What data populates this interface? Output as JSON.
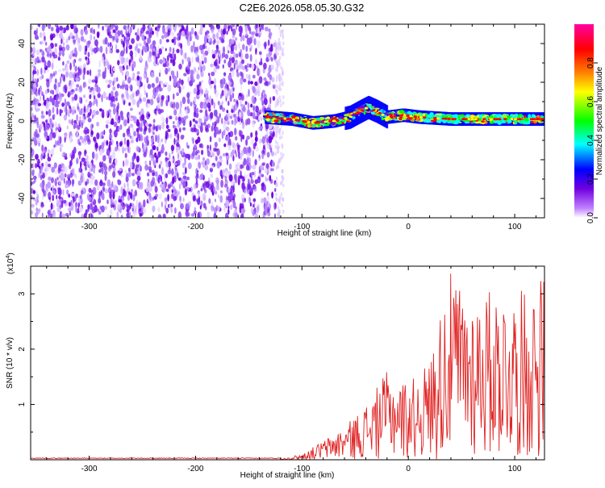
{
  "title": "C2E6.2026.058.05.30.G32",
  "chart_data": [
    {
      "type": "heatmap",
      "xlabel": "Height of straight line (km)",
      "ylabel": "Frequency (Hz)",
      "xlim": [
        -355,
        128
      ],
      "ylim": [
        -50,
        50
      ],
      "xticks": [
        -300,
        -200,
        -100,
        0,
        100
      ],
      "yticks": [
        -40,
        -20,
        0,
        20,
        40
      ],
      "noise_region_x": [
        -355,
        -125
      ],
      "signal_band_x": [
        -135,
        128
      ],
      "signal_center_hz": [
        {
          "x": -135,
          "y": 2
        },
        {
          "x": -110,
          "y": 1
        },
        {
          "x": -90,
          "y": -1
        },
        {
          "x": -70,
          "y": 0
        },
        {
          "x": -55,
          "y": 2
        },
        {
          "x": -45,
          "y": 5
        },
        {
          "x": -38,
          "y": 7
        },
        {
          "x": -30,
          "y": 5
        },
        {
          "x": -20,
          "y": 2
        },
        {
          "x": -5,
          "y": 3
        },
        {
          "x": 10,
          "y": 2
        },
        {
          "x": 40,
          "y": 1
        },
        {
          "x": 80,
          "y": 1
        },
        {
          "x": 128,
          "y": 1
        }
      ],
      "colorbar": {
        "label": "Normalized spectral amplitude",
        "range": [
          0,
          1
        ],
        "ticks": [
          0.0,
          0.2,
          0.4,
          0.6,
          0.8
        ],
        "colors": [
          "#ffffff",
          "#c080ff",
          "#7000e0",
          "#0000ff",
          "#00ffff",
          "#00ff00",
          "#ffff00",
          "#ff8000",
          "#ff0000",
          "#ff00a0"
        ]
      },
      "grid": false
    },
    {
      "type": "line",
      "xlabel": "Height of straight line (km)",
      "ylabel": "SNR (10 * v/v)",
      "yscale_label": "(x10",
      "yscale_exp": "4",
      "xlim": [
        -355,
        128
      ],
      "ylim": [
        0,
        3.5
      ],
      "xticks": [
        -300,
        -200,
        -100,
        0,
        100
      ],
      "yticks": [
        1,
        2,
        3
      ],
      "color": "#e02020",
      "envelope": [
        {
          "x": -355,
          "y": 0.02
        },
        {
          "x": -120,
          "y": 0.02
        },
        {
          "x": -100,
          "y": 0.1
        },
        {
          "x": -80,
          "y": 0.35
        },
        {
          "x": -60,
          "y": 0.6
        },
        {
          "x": -40,
          "y": 1.0
        },
        {
          "x": -20,
          "y": 1.6
        },
        {
          "x": 0,
          "y": 1.4
        },
        {
          "x": 20,
          "y": 1.8
        },
        {
          "x": 38,
          "y": 3.4
        },
        {
          "x": 60,
          "y": 3.0
        },
        {
          "x": 80,
          "y": 3.1
        },
        {
          "x": 100,
          "y": 3.0
        },
        {
          "x": 120,
          "y": 3.2
        },
        {
          "x": 128,
          "y": 3.5
        }
      ],
      "grid": false
    }
  ]
}
